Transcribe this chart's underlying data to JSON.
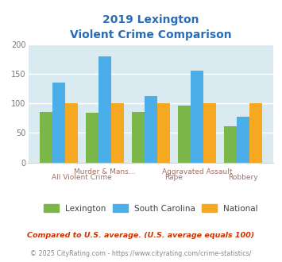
{
  "title_line1": "2019 Lexington",
  "title_line2": "Violent Crime Comparison",
  "title_color": "#2a6db5",
  "lexington": [
    86,
    84,
    85,
    97,
    62
  ],
  "south_carolina": [
    135,
    180,
    113,
    156,
    78
  ],
  "national": [
    100,
    100,
    100,
    100,
    100
  ],
  "bar_colors": {
    "lexington": "#7ab648",
    "south_carolina": "#4baee8",
    "national": "#f5a820"
  },
  "ylim": [
    0,
    200
  ],
  "yticks": [
    0,
    50,
    100,
    150,
    200
  ],
  "background_color": "#daeaf1",
  "grid_color": "#ffffff",
  "legend_labels": [
    "Lexington",
    "South Carolina",
    "National"
  ],
  "legend_text_color": "#444444",
  "xlabel_top": [
    "Murder & Mans...",
    "Aggravated Assault"
  ],
  "xlabel_top_pos": [
    1.0,
    3.0
  ],
  "xlabel_bottom": [
    "All Violent Crime",
    "Rape",
    "Robbery"
  ],
  "xlabel_bottom_pos": [
    0.5,
    2.5,
    4.0
  ],
  "xlabel_color": "#a07060",
  "footnote1": "Compared to U.S. average. (U.S. average equals 100)",
  "footnote2": "© 2025 CityRating.com - https://www.cityrating.com/crime-statistics/",
  "footnote1_color": "#cc3300",
  "footnote2_color": "#888888",
  "footnote2_url_color": "#2266cc"
}
